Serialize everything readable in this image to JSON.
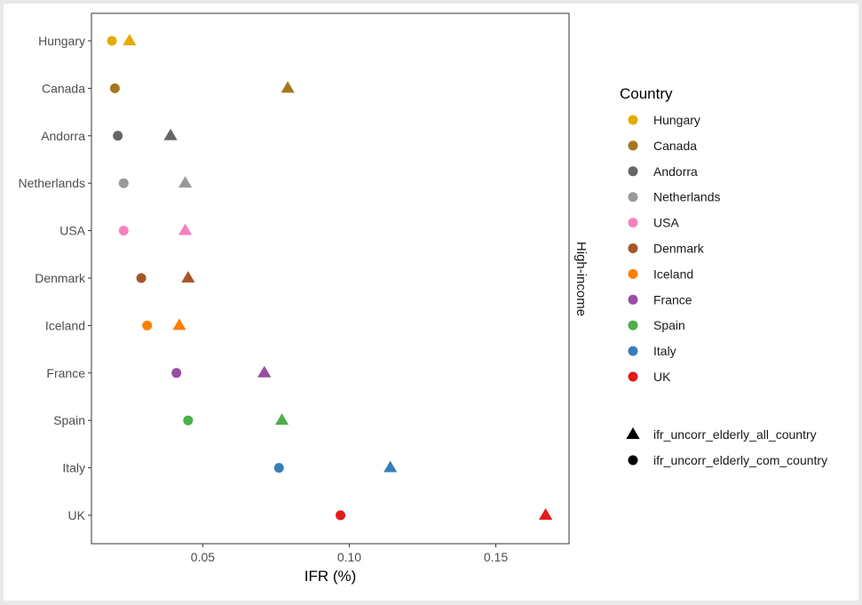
{
  "chart_data": {
    "type": "scatter",
    "title": "",
    "xlabel": "IFR (%)",
    "ylabel": "",
    "facet_label": "High-income",
    "xlim": [
      0.012,
      0.175
    ],
    "x_ticks": [
      0.05,
      0.1,
      0.15
    ],
    "x_tick_labels": [
      "0.05",
      "0.10",
      "0.15"
    ],
    "grid": false,
    "categories": [
      "Hungary",
      "Canada",
      "Andorra",
      "Netherlands",
      "USA",
      "Denmark",
      "Iceland",
      "France",
      "Spain",
      "Italy",
      "UK"
    ],
    "colors": [
      "#E6AB02",
      "#A6761D",
      "#666666",
      "#999999",
      "#F781BF",
      "#A65628",
      "#FF7F00",
      "#984EA3",
      "#4DAF4A",
      "#377EB8",
      "#E41A1C"
    ],
    "series": [
      {
        "name": "ifr_uncorr_elderly_all_country",
        "shape": "triangle",
        "values": [
          0.025,
          0.079,
          0.039,
          0.044,
          0.044,
          0.045,
          0.042,
          0.071,
          0.077,
          0.114,
          0.167
        ]
      },
      {
        "name": "ifr_uncorr_elderly_com_country",
        "shape": "circle",
        "values": [
          0.019,
          0.02,
          0.021,
          0.023,
          0.023,
          0.029,
          0.031,
          0.041,
          0.045,
          0.076,
          0.097
        ]
      }
    ],
    "legend": {
      "position": "right",
      "color_title": "Country"
    }
  }
}
